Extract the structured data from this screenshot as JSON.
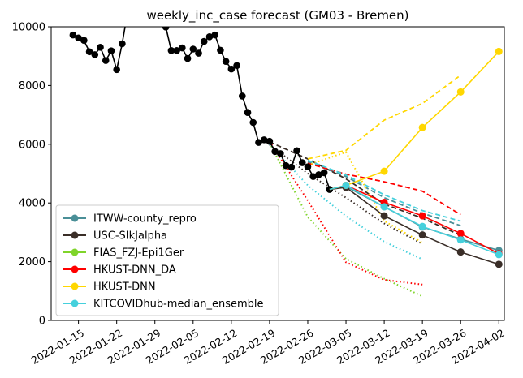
{
  "chart_data": {
    "type": "line",
    "title": "weekly_inc_case forecast (GM03 - Bremen)",
    "xlabel": "",
    "ylabel": "",
    "ylim": [
      0,
      10000
    ],
    "xlim": [
      "2022-01-10",
      "2022-04-03"
    ],
    "yticks": [
      0,
      2000,
      4000,
      6000,
      8000,
      10000
    ],
    "xticks": [
      "2022-01-15",
      "2022-01-22",
      "2022-01-29",
      "2022-02-05",
      "2022-02-12",
      "2022-02-19",
      "2022-02-26",
      "2022-03-05",
      "2022-03-12",
      "2022-03-19",
      "2022-03-26",
      "2022-04-02"
    ],
    "grid": false,
    "legend_position": "lower-left",
    "observed": {
      "color": "#000000",
      "points": [
        [
          "2022-01-14",
          9720
        ],
        [
          "2022-01-15",
          9620
        ],
        [
          "2022-01-16",
          9540
        ],
        [
          "2022-01-17",
          9150
        ],
        [
          "2022-01-18",
          9050
        ],
        [
          "2022-01-19",
          9300
        ],
        [
          "2022-01-20",
          8850
        ],
        [
          "2022-01-21",
          9180
        ],
        [
          "2022-01-22",
          8540
        ],
        [
          "2022-01-23",
          9420
        ],
        [
          "2022-01-24",
          10500
        ],
        [
          "2022-01-30",
          10500
        ],
        [
          "2022-01-31",
          9990
        ],
        [
          "2022-02-01",
          9190
        ],
        [
          "2022-02-02",
          9190
        ],
        [
          "2022-02-03",
          9280
        ],
        [
          "2022-02-04",
          8920
        ],
        [
          "2022-02-05",
          9240
        ],
        [
          "2022-02-06",
          9100
        ],
        [
          "2022-02-07",
          9500
        ],
        [
          "2022-02-08",
          9660
        ],
        [
          "2022-02-09",
          9720
        ],
        [
          "2022-02-10",
          9200
        ],
        [
          "2022-02-11",
          8820
        ],
        [
          "2022-02-12",
          8560
        ],
        [
          "2022-02-13",
          8680
        ],
        [
          "2022-02-14",
          7640
        ],
        [
          "2022-02-15",
          7080
        ],
        [
          "2022-02-16",
          6740
        ],
        [
          "2022-02-17",
          6060
        ],
        [
          "2022-02-18",
          6150
        ],
        [
          "2022-02-19",
          6100
        ],
        [
          "2022-02-20",
          5750
        ],
        [
          "2022-02-21",
          5680
        ],
        [
          "2022-02-22",
          5270
        ],
        [
          "2022-02-23",
          5220
        ],
        [
          "2022-02-24",
          5780
        ],
        [
          "2022-02-25",
          5370
        ],
        [
          "2022-02-26",
          5230
        ],
        [
          "2022-02-27",
          4900
        ],
        [
          "2022-02-28",
          4960
        ],
        [
          "2022-03-01",
          5030
        ],
        [
          "2022-03-02",
          4460
        ]
      ]
    },
    "series": [
      {
        "name": "ITWW-county_repro",
        "color": "#4a8f97",
        "points": [
          [
            "2022-03-05",
            4560
          ],
          [
            "2022-03-12",
            3870
          ],
          [
            "2022-03-19",
            3180
          ],
          [
            "2022-03-26",
            2770
          ],
          [
            "2022-04-02",
            2380
          ]
        ],
        "pi_upper": [
          [
            "2022-02-26",
            5400
          ],
          [
            "2022-03-05",
            4900
          ],
          [
            "2022-03-12",
            4180
          ],
          [
            "2022-03-19",
            3650
          ],
          [
            "2022-03-26",
            3230
          ]
        ],
        "pi_lower": []
      },
      {
        "name": "USC-SIkJalpha",
        "color": "#3a2e28",
        "points": [
          [
            "2022-03-05",
            4530
          ],
          [
            "2022-03-12",
            3560
          ],
          [
            "2022-03-19",
            2910
          ],
          [
            "2022-03-26",
            2330
          ],
          [
            "2022-04-02",
            1910
          ]
        ],
        "pi_upper": [
          [
            "2022-02-19",
            6080
          ],
          [
            "2022-02-26",
            5500
          ],
          [
            "2022-03-05",
            4820
          ],
          [
            "2022-03-12",
            3960
          ],
          [
            "2022-03-19",
            3480
          ],
          [
            "2022-03-26",
            2900
          ]
        ],
        "pi_lower": [
          [
            "2022-02-19",
            5980
          ],
          [
            "2022-02-26",
            5000
          ],
          [
            "2022-03-05",
            4180
          ],
          [
            "2022-03-12",
            3300
          ],
          [
            "2022-03-19",
            2600
          ]
        ]
      },
      {
        "name": "FIAS_FZJ-Epi1Ger",
        "color": "#7fd42a",
        "points": [],
        "pi_upper": [],
        "pi_lower": [
          [
            "2022-02-19",
            6050
          ],
          [
            "2022-02-26",
            3520
          ],
          [
            "2022-03-05",
            2100
          ],
          [
            "2022-03-12",
            1420
          ],
          [
            "2022-03-19",
            820
          ]
        ]
      },
      {
        "name": "HKUST-DNN_DA",
        "color": "#ff0000",
        "points": [
          [
            "2022-03-05",
            4600
          ],
          [
            "2022-03-12",
            4020
          ],
          [
            "2022-03-19",
            3560
          ],
          [
            "2022-03-26",
            2960
          ],
          [
            "2022-04-02",
            2270
          ]
        ],
        "pi_upper": [
          [
            "2022-02-26",
            5350
          ],
          [
            "2022-03-05",
            4980
          ],
          [
            "2022-03-12",
            4720
          ],
          [
            "2022-03-19",
            4400
          ],
          [
            "2022-03-26",
            3600
          ]
        ],
        "pi_lower": [
          [
            "2022-02-19",
            6100
          ],
          [
            "2022-02-26",
            4080
          ],
          [
            "2022-03-05",
            1980
          ],
          [
            "2022-03-12",
            1380
          ],
          [
            "2022-03-19",
            1220
          ]
        ]
      },
      {
        "name": "HKUST-DNN",
        "color": "#ffd700",
        "points": [
          [
            "2022-03-05",
            4600
          ],
          [
            "2022-03-12",
            5080
          ],
          [
            "2022-03-19",
            6570
          ],
          [
            "2022-03-26",
            7780
          ],
          [
            "2022-04-02",
            9160
          ]
        ],
        "pi_upper": [
          [
            "2022-02-26",
            5500
          ],
          [
            "2022-03-05",
            5790
          ],
          [
            "2022-03-12",
            6820
          ],
          [
            "2022-03-19",
            7390
          ],
          [
            "2022-03-26",
            8350
          ]
        ],
        "pi_lower": [
          [
            "2022-02-26",
            5290
          ],
          [
            "2022-03-05",
            5730
          ],
          [
            "2022-03-12",
            3380
          ],
          [
            "2022-03-19",
            2650
          ]
        ]
      },
      {
        "name": "KITCOVIDhub-median_ensemble",
        "color": "#45d0dc",
        "points": [
          [
            "2022-03-05",
            4600
          ],
          [
            "2022-03-12",
            3870
          ],
          [
            "2022-03-19",
            3200
          ],
          [
            "2022-03-26",
            2740
          ],
          [
            "2022-04-02",
            2240
          ]
        ],
        "pi_upper": [
          [
            "2022-02-26",
            5450
          ],
          [
            "2022-03-05",
            4950
          ],
          [
            "2022-03-12",
            4280
          ],
          [
            "2022-03-19",
            3740
          ],
          [
            "2022-03-26",
            3380
          ]
        ],
        "pi_lower": [
          [
            "2022-02-19",
            6000
          ],
          [
            "2022-02-26",
            4600
          ],
          [
            "2022-03-05",
            3550
          ],
          [
            "2022-03-12",
            2680
          ],
          [
            "2022-03-19",
            2080
          ]
        ]
      }
    ]
  }
}
